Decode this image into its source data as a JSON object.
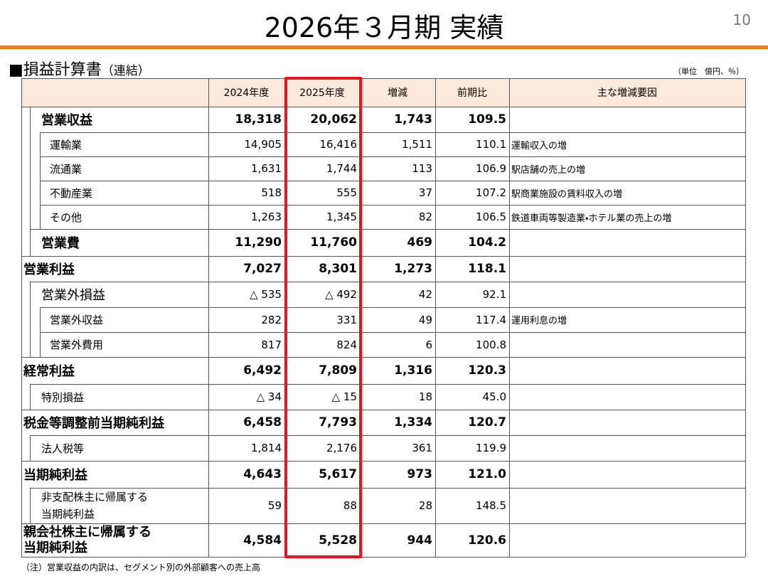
{
  "header": {
    "title": "2026年３月期 実績",
    "page_number": "10",
    "section_title": "■損益計算書",
    "section_suffix": "（連結）",
    "unit_note": "（単位　億円、％）"
  },
  "table": {
    "columns": [
      "2024年度",
      "2025年度",
      "増減",
      "前期比",
      "主な増減要因"
    ],
    "rows": [
      {
        "label": "営業収益",
        "fy2024": "18,318",
        "fy2025": "20,062",
        "change": "1,743",
        "ratio": "109.5"
      },
      {
        "label": "運輸業",
        "fy2024": "14,905",
        "fy2025": "16,416",
        "change": "1,511",
        "ratio": "110.1",
        "reason": "運輸収入の増"
      },
      {
        "label": "流通業",
        "fy2024": "1,631",
        "fy2025": "1,744",
        "change": "113",
        "ratio": "106.9",
        "reason": "駅店舗の売上の増"
      },
      {
        "label": "不動産業",
        "fy2024": "518",
        "fy2025": "555",
        "change": "37",
        "ratio": "107.2",
        "reason": "駅商業施設の賃料収入の増"
      },
      {
        "label": "その他",
        "fy2024": "1,263",
        "fy2025": "1,345",
        "change": "82",
        "ratio": "106.5",
        "reason": "鉄道車両等製造業・ホテル業の売上の増"
      },
      {
        "label": "営業費",
        "fy2024": "11,290",
        "fy2025": "11,760",
        "change": "469",
        "ratio": "104.2"
      },
      {
        "label": "営業利益",
        "fy2024": "7,027",
        "fy2025": "8,301",
        "change": "1,273",
        "ratio": "118.1"
      },
      {
        "label": "営業外損益",
        "fy2024": "△ 535",
        "fy2025": "△ 492",
        "change": "42",
        "ratio": "92.1"
      },
      {
        "label": "営業外収益",
        "fy2024": "282",
        "fy2025": "331",
        "change": "49",
        "ratio": "117.4",
        "reason": "運用利息の増"
      },
      {
        "label": "営業外費用",
        "fy2024": "817",
        "fy2025": "824",
        "change": "6",
        "ratio": "100.8"
      },
      {
        "label": "経常利益",
        "fy2024": "6,492",
        "fy2025": "7,809",
        "change": "1,316",
        "ratio": "120.3"
      },
      {
        "label": "特別損益",
        "fy2024": "△ 34",
        "fy2025": "△ 15",
        "change": "18",
        "ratio": "45.0"
      },
      {
        "label": "税金等調整前当期純利益",
        "fy2024": "6,458",
        "fy2025": "7,793",
        "change": "1,334",
        "ratio": "120.7"
      },
      {
        "label": "法人税等",
        "fy2024": "1,814",
        "fy2025": "2,176",
        "change": "361",
        "ratio": "119.9"
      },
      {
        "label": "当期純利益",
        "fy2024": "4,643",
        "fy2025": "5,617",
        "change": "973",
        "ratio": "121.0"
      },
      {
        "label": [
          "非支配株主に帰属する",
          "当期純利益"
        ],
        "fy2024": "59",
        "fy2025": "88",
        "change": "28",
        "ratio": "148.5"
      },
      {
        "label": [
          "親会社株主に帰属する",
          "当期純利益"
        ],
        "fy2024": "4,584",
        "fy2025": "5,528",
        "change": "944",
        "ratio": "120.6"
      }
    ]
  },
  "footnote": "（注）営業収益の内訳は、セグメント別の外部顧客への売上高"
}
